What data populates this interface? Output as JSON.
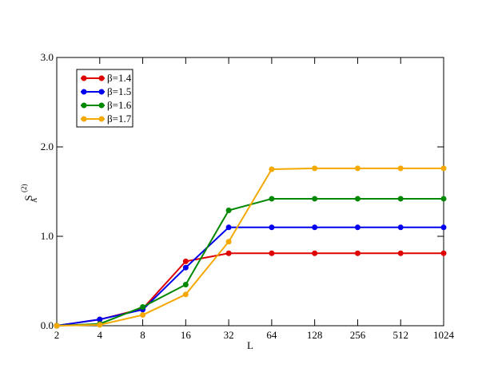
{
  "chart_data": {
    "type": "line",
    "xlabel": "L",
    "ylabel": {
      "base": "S",
      "sub": "A",
      "sup": "(2)"
    },
    "x": [
      2,
      4,
      8,
      16,
      32,
      64,
      128,
      256,
      512,
      1024
    ],
    "xscale": "log2",
    "xlim": [
      2,
      1024
    ],
    "xticks": [
      2,
      4,
      8,
      16,
      32,
      64,
      128,
      256,
      512,
      1024
    ],
    "ylim": [
      0,
      3
    ],
    "yticks": [
      {
        "value": 0,
        "label": "0.0"
      },
      {
        "value": 1,
        "label": "1.0"
      },
      {
        "value": 2,
        "label": "2.0"
      },
      {
        "value": 3,
        "label": "3.0"
      }
    ],
    "legend": "top-left",
    "series": [
      {
        "name": "β=1.4",
        "color": "#e00000",
        "values": [
          0.0,
          0.07,
          0.19,
          0.72,
          0.81,
          0.81,
          0.81,
          0.81,
          0.81,
          0.81
        ]
      },
      {
        "name": "β=1.5",
        "color": "#0000ee",
        "values": [
          0.0,
          0.07,
          0.18,
          0.65,
          1.1,
          1.1,
          1.1,
          1.1,
          1.1,
          1.1
        ]
      },
      {
        "name": "β=1.6",
        "color": "#008800",
        "values": [
          0.0,
          0.02,
          0.21,
          0.46,
          1.29,
          1.42,
          1.42,
          1.42,
          1.42,
          1.42
        ]
      },
      {
        "name": "β=1.7",
        "color": "#f5a800",
        "values": [
          0.0,
          0.01,
          0.12,
          0.35,
          0.94,
          1.75,
          1.76,
          1.76,
          1.76,
          1.76
        ]
      }
    ]
  }
}
